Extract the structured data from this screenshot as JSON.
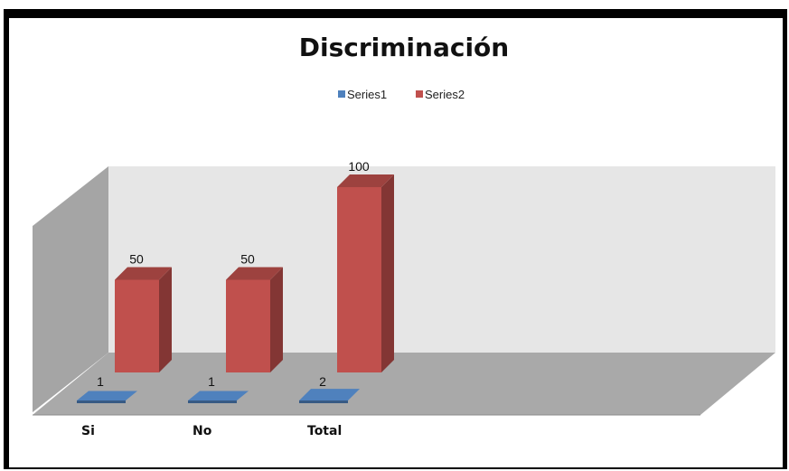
{
  "chart_data": {
    "type": "bar",
    "title": "Discriminación",
    "categories": [
      "Si",
      "No",
      "Total"
    ],
    "series": [
      {
        "name": "Series1",
        "values": [
          1,
          1,
          2
        ],
        "color": "#4F81BD"
      },
      {
        "name": "Series2",
        "values": [
          50,
          50,
          100
        ],
        "color": "#C0504D"
      }
    ],
    "ylim": [
      0,
      100
    ],
    "grid": false,
    "legend_position": "top",
    "style": "3d-column"
  }
}
